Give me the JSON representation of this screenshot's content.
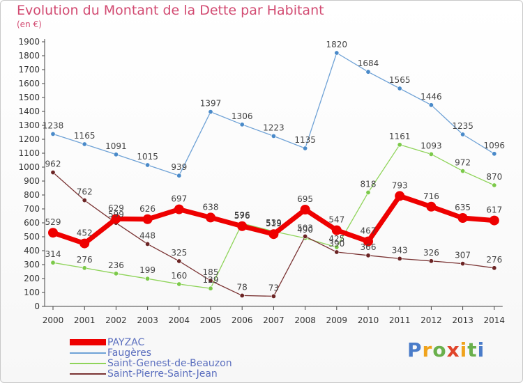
{
  "title": "Evolution du Montant de la Dette par Habitant",
  "subtitle": "(en €)",
  "logo": {
    "text": "Proxiti",
    "letters": [
      "P",
      "r",
      "o",
      "x",
      "i",
      "t",
      "i"
    ],
    "colors": [
      "#4a7cc9",
      "#f0a31c",
      "#6ab04c",
      "#e0442a",
      "#f0a31c",
      "#6ab04c",
      "#4a7cc9"
    ]
  },
  "chart_data": {
    "type": "line",
    "title": "Evolution du Montant de la Dette par Habitant",
    "ylabel": "(en €)",
    "xlabel": "",
    "ylim": [
      0,
      1900
    ],
    "yticks": [
      0,
      100,
      200,
      300,
      400,
      500,
      600,
      700,
      800,
      900,
      1000,
      1100,
      1200,
      1300,
      1400,
      1500,
      1600,
      1700,
      1800,
      1900
    ],
    "grid": false,
    "legend_position": "bottom-left",
    "x": [
      "2000",
      "2001",
      "2002",
      "2003",
      "2004",
      "2005",
      "2006",
      "2007",
      "2008",
      "2009",
      "2010",
      "2011",
      "2012",
      "2013",
      "2014"
    ],
    "series": [
      {
        "name": "Faugères",
        "color": "#6fa2d6",
        "width": 1.3,
        "marker": "#4a8ac9",
        "values": [
          1238,
          1165,
          1091,
          1015,
          939,
          1397,
          1306,
          1223,
          1135,
          1820,
          1684,
          1565,
          1446,
          1235,
          1096
        ]
      },
      {
        "name": "Saint-Genest-de-Beauzon",
        "color": "#8fd45a",
        "width": 1.3,
        "marker": "#7cc94a",
        "values": [
          314,
          276,
          236,
          199,
          160,
          129,
          596,
          539,
          490,
          425,
          818,
          1161,
          1093,
          972,
          870
        ]
      },
      {
        "name": "Saint-Pierre-Saint-Jean",
        "color": "#7a3333",
        "width": 1.3,
        "marker": "#6b2424",
        "values": [
          962,
          762,
          599,
          448,
          325,
          185,
          78,
          73,
          503,
          390,
          366,
          343,
          326,
          307,
          276
        ]
      },
      {
        "name": "PAYZAC",
        "color": "#ee0000",
        "width": 7,
        "marker": "#ee0000",
        "values": [
          529,
          452,
          629,
          626,
          697,
          638,
          576,
          519,
          695,
          547,
          467,
          793,
          716,
          635,
          617
        ]
      }
    ],
    "legend_order": [
      "PAYZAC",
      "Faugères",
      "Saint-Genest-de-Beauzon",
      "Saint-Pierre-Saint-Jean"
    ]
  }
}
